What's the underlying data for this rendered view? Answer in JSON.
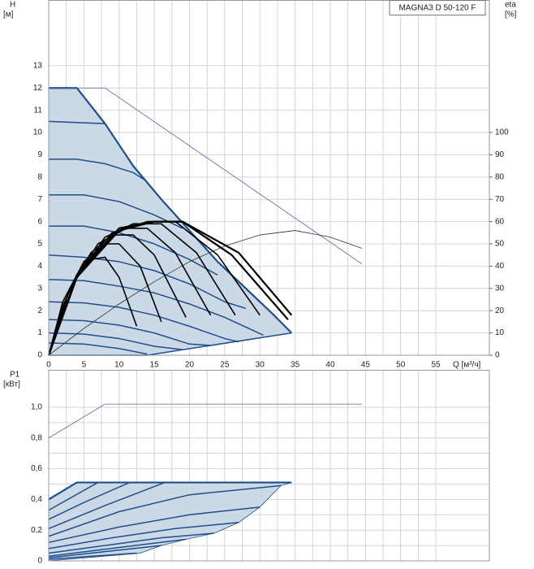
{
  "chart_data": [
    {
      "type": "line",
      "title": "MAGNA3 D 50-120 F",
      "ylabel": "H",
      "yunit": "[м]",
      "y2label": "eta",
      "y2unit": "[%]",
      "xlabel": "Q [м³/ч]",
      "xlim": [
        0,
        62.6
      ],
      "xticks": [
        0,
        5,
        10,
        15,
        20,
        25,
        30,
        35,
        40,
        45,
        50,
        55
      ],
      "ylim": [
        0,
        15.95
      ],
      "yticks": [
        0,
        1,
        2,
        3,
        4,
        5,
        6,
        7,
        8,
        9,
        10,
        11,
        12,
        13
      ],
      "y2lim": [
        0,
        159.5
      ],
      "y2ticks": [
        0,
        10,
        20,
        30,
        40,
        50,
        60,
        70,
        80,
        90,
        100
      ],
      "grid": true,
      "minor_grid": true,
      "fill": "#cbd8e5",
      "series": [
        {
          "color": "#1f4e8c",
          "width": 2.2,
          "x": [
            0,
            4,
            8,
            12,
            16,
            20,
            24,
            28,
            32,
            34.5
          ],
          "values": [
            12,
            12,
            10.4,
            8.5,
            7.0,
            5.6,
            4.2,
            3.0,
            1.8,
            1.0
          ]
        },
        {
          "color": "#1f4e8c",
          "width": 1.5,
          "x": [
            0,
            4,
            8
          ],
          "values": [
            10.5,
            10.45,
            10.4
          ]
        },
        {
          "color": "#1f4e8c",
          "width": 1.5,
          "x": [
            0,
            4,
            8,
            12,
            13.5
          ],
          "values": [
            8.8,
            8.8,
            8.6,
            8.2,
            7.9
          ]
        },
        {
          "color": "#1f4e8c",
          "width": 1.5,
          "x": [
            0,
            5,
            10,
            15,
            19
          ],
          "values": [
            7.2,
            7.2,
            6.9,
            6.3,
            5.7
          ]
        },
        {
          "color": "#1f4e8c",
          "width": 1.5,
          "x": [
            0,
            5,
            10,
            15,
            20,
            24
          ],
          "values": [
            5.8,
            5.8,
            5.5,
            5.0,
            4.3,
            3.6
          ]
        },
        {
          "color": "#1f4e8c",
          "width": 1.5,
          "x": [
            0,
            5,
            10,
            15,
            20,
            25,
            28
          ],
          "values": [
            4.5,
            4.4,
            4.2,
            3.8,
            3.2,
            2.4,
            2.1
          ]
        },
        {
          "color": "#1f4e8c",
          "width": 1.5,
          "x": [
            0,
            5,
            10,
            15,
            20,
            25,
            30.5
          ],
          "values": [
            3.4,
            3.35,
            3.1,
            2.8,
            2.3,
            1.7,
            0.9
          ]
        },
        {
          "color": "#1f4e8c",
          "width": 1.5,
          "x": [
            0,
            5,
            10,
            15,
            20,
            25,
            27
          ],
          "values": [
            2.4,
            2.35,
            2.15,
            1.8,
            1.3,
            0.75,
            0.6
          ]
        },
        {
          "color": "#1f4e8c",
          "width": 1.5,
          "x": [
            0,
            5,
            10,
            15,
            20,
            23
          ],
          "values": [
            1.6,
            1.55,
            1.35,
            1.0,
            0.5,
            0.44
          ]
        },
        {
          "color": "#1f4e8c",
          "width": 1.5,
          "x": [
            0,
            5,
            10,
            15,
            19
          ],
          "values": [
            1.0,
            0.95,
            0.75,
            0.4,
            0.25
          ]
        },
        {
          "color": "#1f4e8c",
          "width": 1.5,
          "x": [
            0,
            5,
            10,
            14
          ],
          "values": [
            0.55,
            0.5,
            0.3,
            0.05
          ]
        },
        {
          "color": "#1f4e8c",
          "width": 1.5,
          "boundary": true,
          "x": [
            0,
            14,
            34.5
          ],
          "values": [
            0,
            0,
            1
          ]
        },
        {
          "color": "#4a6a9a",
          "width": 0.8,
          "x": [
            0,
            8,
            44.5
          ],
          "values": [
            12,
            12,
            4.1
          ]
        },
        {
          "color": "#333333",
          "width": 0.8,
          "axis": "y2",
          "x": [
            0,
            5,
            10,
            15,
            20,
            25,
            30,
            35,
            40,
            44.5
          ],
          "values": [
            0,
            12,
            23,
            33,
            42,
            49,
            54,
            56,
            53,
            48
          ]
        },
        {
          "color": "#000000",
          "width": 1.6,
          "axis": "y2",
          "x": [
            0,
            2,
            4,
            6,
            8,
            10,
            12.5
          ],
          "values": [
            0,
            22,
            36,
            43,
            44,
            35,
            13
          ]
        },
        {
          "color": "#000000",
          "width": 1.6,
          "axis": "y2",
          "x": [
            0,
            2,
            5,
            8,
            10,
            13,
            16
          ],
          "values": [
            0,
            24,
            42,
            50,
            50,
            40,
            15
          ]
        },
        {
          "color": "#000000",
          "width": 1.6,
          "axis": "y2",
          "x": [
            0,
            3,
            6,
            9,
            12,
            15,
            19.5
          ],
          "values": [
            0,
            30,
            46,
            54,
            54,
            45,
            17
          ]
        },
        {
          "color": "#000000",
          "width": 1.6,
          "axis": "y2",
          "x": [
            0,
            3,
            7,
            11,
            14,
            18,
            23
          ],
          "values": [
            0,
            30,
            50,
            57,
            57,
            46,
            18
          ]
        },
        {
          "color": "#000000",
          "width": 1.6,
          "axis": "y2",
          "x": [
            0,
            3,
            8,
            12,
            16,
            21,
            26.5
          ],
          "values": [
            0,
            30,
            53,
            59,
            59,
            46,
            18
          ]
        },
        {
          "color": "#000000",
          "width": 1.6,
          "axis": "y2",
          "x": [
            0,
            4,
            9,
            14,
            18,
            24,
            30
          ],
          "values": [
            0,
            36,
            55,
            60,
            60,
            45,
            18
          ]
        },
        {
          "color": "#000000",
          "width": 2.2,
          "axis": "y2",
          "x": [
            0,
            4,
            10,
            15,
            19,
            26,
            34
          ],
          "values": [
            0,
            36,
            57,
            60,
            60,
            45,
            16
          ]
        },
        {
          "color": "#000000",
          "width": 2.2,
          "axis": "y2",
          "x": [
            0,
            4,
            10,
            15,
            19,
            27,
            34.5
          ],
          "values": [
            0,
            35,
            56,
            60,
            60,
            46,
            18
          ]
        }
      ]
    },
    {
      "type": "line",
      "ylabel": "P1",
      "yunit": "[кВт]",
      "xlim": [
        0,
        62.6
      ],
      "ylim": [
        0,
        1.243
      ],
      "yticks": [
        {
          "value": 0,
          "label": "0"
        },
        {
          "value": 0.2,
          "label": "0,2"
        },
        {
          "value": 0.4,
          "label": "0,4"
        },
        {
          "value": 0.6,
          "label": "0,6"
        },
        {
          "value": 0.8,
          "label": "0,8"
        },
        {
          "value": 1.0,
          "label": "1,0"
        }
      ],
      "grid": true,
      "minor_grid": true,
      "fill": "#cbd8e5",
      "series": [
        {
          "color": "#1f4e8c",
          "width": 2.2,
          "x": [
            0,
            4,
            34.5
          ],
          "values": [
            0.4,
            0.51,
            0.51
          ]
        },
        {
          "color": "#1f4e8c",
          "width": 1.5,
          "x": [
            0,
            3.5,
            7
          ],
          "values": [
            0.33,
            0.42,
            0.51
          ]
        },
        {
          "color": "#1f4e8c",
          "width": 1.5,
          "x": [
            0,
            5,
            11.5
          ],
          "values": [
            0.27,
            0.38,
            0.51
          ]
        },
        {
          "color": "#1f4e8c",
          "width": 1.5,
          "x": [
            0,
            8,
            16.5
          ],
          "values": [
            0.21,
            0.36,
            0.51
          ]
        },
        {
          "color": "#1f4e8c",
          "width": 1.5,
          "x": [
            0,
            10,
            20,
            33
          ],
          "values": [
            0.16,
            0.32,
            0.43,
            0.49
          ]
        },
        {
          "color": "#1f4e8c",
          "width": 1.5,
          "x": [
            0,
            10,
            20,
            30
          ],
          "values": [
            0.12,
            0.22,
            0.3,
            0.35
          ]
        },
        {
          "color": "#1f4e8c",
          "width": 1.5,
          "x": [
            0,
            9,
            18,
            27
          ],
          "values": [
            0.08,
            0.15,
            0.21,
            0.25
          ]
        },
        {
          "color": "#1f4e8c",
          "width": 1.5,
          "x": [
            0,
            8,
            16,
            23.5
          ],
          "values": [
            0.05,
            0.1,
            0.15,
            0.18
          ]
        },
        {
          "color": "#1f4e8c",
          "width": 1.5,
          "x": [
            0,
            7,
            14,
            19.5
          ],
          "values": [
            0.03,
            0.07,
            0.11,
            0.14
          ]
        },
        {
          "color": "#1f4e8c",
          "width": 1.5,
          "x": [
            0,
            6,
            12,
            16
          ],
          "values": [
            0.02,
            0.05,
            0.08,
            0.1
          ]
        },
        {
          "color": "#1f4e8c",
          "width": 1.5,
          "x": [
            0,
            6,
            12.5
          ],
          "values": [
            0.01,
            0.03,
            0.05
          ]
        },
        {
          "color": "#1f4e8c",
          "width": 0.8,
          "boundary": true,
          "x": [
            0,
            13,
            16,
            19.5,
            23.5,
            27,
            30,
            33,
            34.5
          ],
          "values": [
            0,
            0.05,
            0.1,
            0.14,
            0.18,
            0.25,
            0.35,
            0.49,
            0.51
          ]
        },
        {
          "color": "#4a6a9a",
          "width": 0.8,
          "x": [
            0,
            8,
            44.5
          ],
          "values": [
            0.8,
            1.02,
            1.02
          ]
        }
      ]
    }
  ]
}
